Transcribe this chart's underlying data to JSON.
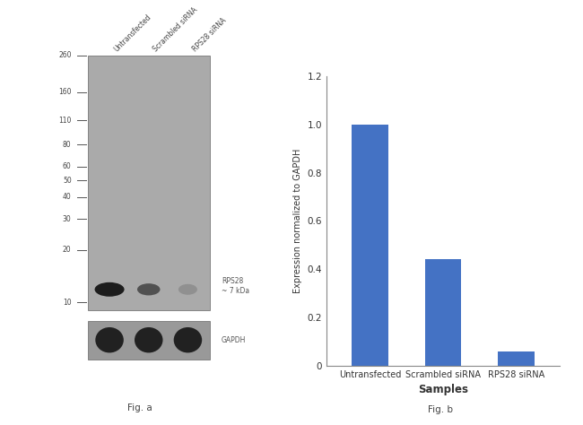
{
  "fig_a": {
    "mw_markers": [
      260,
      160,
      110,
      80,
      60,
      50,
      40,
      30,
      20,
      10
    ],
    "lane_labels": [
      "Untransfected",
      "Scrambled siRNA",
      "RPS28 siRNA"
    ],
    "rps28_label": "RPS28\n~ 7 kDa",
    "gapdh_label": "GAPDH",
    "fig_label": "Fig. a",
    "gel_color": "#aaaaaa",
    "band_dark": "#111111",
    "band_mid": "#282828",
    "band_faint": "#555555"
  },
  "fig_b": {
    "categories": [
      "Untransfected",
      "Scrambled siRNA",
      "RPS28 siRNA"
    ],
    "values": [
      1.0,
      0.44,
      0.06
    ],
    "bar_color": "#4472c4",
    "ylabel": "Expression normalized to GAPDH",
    "xlabel": "Samples",
    "ylim": [
      0,
      1.2
    ],
    "yticks": [
      0,
      0.2,
      0.4,
      0.6,
      0.8,
      1.0,
      1.2
    ],
    "fig_label": "Fig. b"
  }
}
